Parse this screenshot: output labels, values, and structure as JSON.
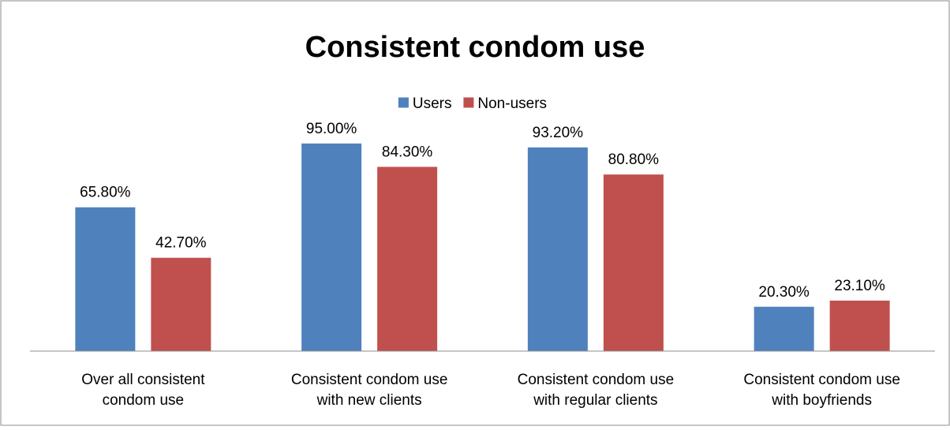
{
  "chart_data": {
    "type": "bar",
    "title": "Consistent condom use",
    "categories": [
      [
        "Over all consistent",
        "condom use"
      ],
      [
        "Consistent condom use",
        "with new clients"
      ],
      [
        "Consistent condom use",
        "with regular clients"
      ],
      [
        "Consistent condom use",
        "with boyfriends"
      ]
    ],
    "series": [
      {
        "name": "Users",
        "values": [
          65.8,
          95.0,
          93.2,
          20.3
        ],
        "labels": [
          "65.80%",
          "95.00%",
          "93.20%",
          "20.30%"
        ],
        "color": "#4F81BD"
      },
      {
        "name": "Non-users",
        "values": [
          42.7,
          84.3,
          80.8,
          23.1
        ],
        "labels": [
          "42.70%",
          "84.30%",
          "80.80%",
          "23.10%"
        ],
        "color": "#C0504D"
      }
    ],
    "ylim": [
      0,
      100
    ],
    "xlabel": "",
    "ylabel": "",
    "grid": false,
    "legend_position": "top"
  }
}
